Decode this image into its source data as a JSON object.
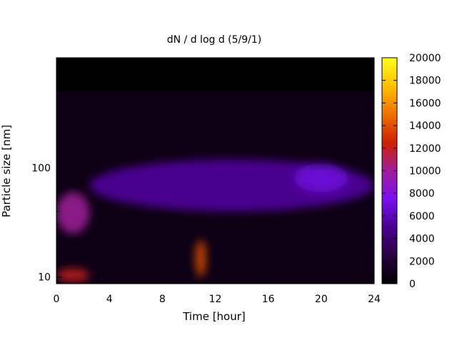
{
  "chart_data": {
    "type": "heatmap",
    "title": "dN / d log d (5/9/1)",
    "xlabel": "Time [hour]",
    "ylabel": "Particle size [nm]",
    "xlim": [
      0,
      24
    ],
    "x_ticks": [
      "0",
      "4",
      "8",
      "12",
      "16",
      "20",
      "24"
    ],
    "y_scale": "log",
    "ylim": [
      8.7,
      1020
    ],
    "y_ticks": [
      "10",
      "100"
    ],
    "colorbar": {
      "range": [
        0,
        20000
      ],
      "ticks": [
        "0",
        "2000",
        "4000",
        "6000",
        "8000",
        "10000",
        "12000",
        "14000",
        "16000",
        "18000",
        "20000"
      ],
      "colormap": [
        "#000000",
        "#2a0040",
        "#4a0090",
        "#7a10f0",
        "#a01e9a",
        "#cc2000",
        "#f07000",
        "#ffc000",
        "#ffff20"
      ]
    },
    "features": [
      {
        "x": [
          0,
          2.5
        ],
        "y": [
          9,
          12
        ],
        "level": 12000
      },
      {
        "x": [
          0,
          2.5
        ],
        "y": [
          25,
          60
        ],
        "level": 10000
      },
      {
        "x": [
          10.5,
          11.3
        ],
        "y": [
          10,
          22
        ],
        "level": 14000
      },
      {
        "x": [
          2.5,
          24
        ],
        "y": [
          40,
          120
        ],
        "level": 5500
      },
      {
        "x": [
          18,
          22
        ],
        "y": [
          60,
          110
        ],
        "level": 7000
      },
      {
        "x": [
          0,
          24
        ],
        "y": [
          500,
          1000
        ],
        "level": 0
      }
    ],
    "grid": false
  }
}
